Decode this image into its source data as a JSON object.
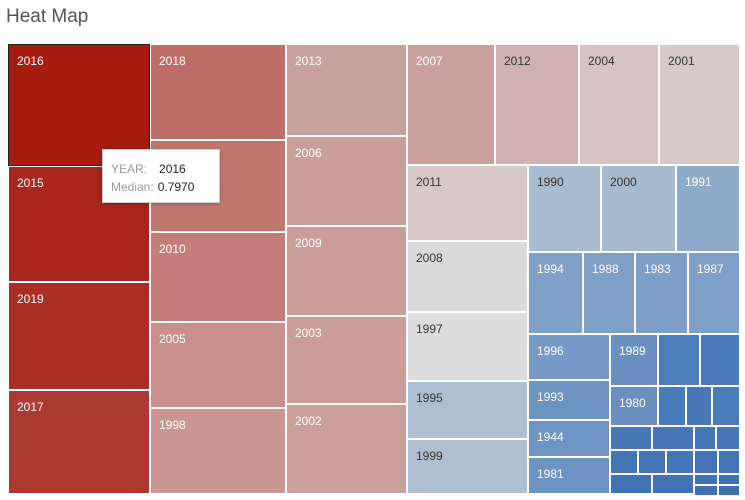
{
  "title": "Heat Map",
  "tooltip": {
    "year_label": "YEAR:",
    "year_value": "2016",
    "median_label": "Median:",
    "median_value": "0.7970"
  },
  "chart_data": {
    "type": "treemap",
    "title": "Heat Map",
    "selected": "2016",
    "color_scale": {
      "high": "#a61c11",
      "mid": "#dcdcdc",
      "low": "#3f73b3"
    },
    "cells": [
      {
        "label": "2016",
        "value": 16.8,
        "color": "#a61c11"
      },
      {
        "label": "2015",
        "value": 14.3,
        "color": "#a8261b"
      },
      {
        "label": "2019",
        "value": 13.6,
        "color": "#ab2e24"
      },
      {
        "label": "2017",
        "value": 13.7,
        "color": "#ac3a30"
      },
      {
        "label": "2018",
        "value": 12.9,
        "color": "#bf6e67"
      },
      {
        "label": "",
        "value": 12.7,
        "color": "#c07770"
      },
      {
        "label": "2010",
        "value": 12.3,
        "color": "#c47d78"
      },
      {
        "label": "2005",
        "value": 12.0,
        "color": "#c8908b"
      },
      {
        "label": "1998",
        "value": 11.9,
        "color": "#ca9692"
      },
      {
        "label": "2013",
        "value": 11.2,
        "color": "#c9a19f"
      },
      {
        "label": "2006",
        "value": 11.0,
        "color": "#c99e9b"
      },
      {
        "label": "2009",
        "value": 11.0,
        "color": "#c99e9b"
      },
      {
        "label": "2003",
        "value": 10.9,
        "color": "#ca9d9a"
      },
      {
        "label": "2002",
        "value": 10.5,
        "color": "#cb9f9c"
      },
      {
        "label": "2007",
        "value": 10.0,
        "color": "#c9a09e"
      },
      {
        "label": "2012",
        "value": 9.4,
        "color": "#d0b3b1"
      },
      {
        "label": "2004",
        "value": 9.2,
        "color": "#d7c3c2"
      },
      {
        "label": "2001",
        "value": 9.1,
        "color": "#d8c9c9"
      },
      {
        "label": "2011",
        "value": 9.0,
        "color": "#d8c8c7"
      },
      {
        "label": "2008",
        "value": 8.9,
        "color": "#dadada"
      },
      {
        "label": "1997",
        "value": 8.9,
        "color": "#dddddd"
      },
      {
        "label": "1995",
        "value": 8.3,
        "color": "#aebfd1"
      },
      {
        "label": "1999",
        "value": 7.8,
        "color": "#aebfd1"
      },
      {
        "label": "1990",
        "value": 8.0,
        "color": "#a9bdd2"
      },
      {
        "label": "2000",
        "value": 7.9,
        "color": "#a7bbd0"
      },
      {
        "label": "1991",
        "value": 6.7,
        "color": "#8fabcc"
      },
      {
        "label": "1994",
        "value": 6.6,
        "color": "#7fa0c8"
      },
      {
        "label": "1988",
        "value": 6.4,
        "color": "#7ea0c7"
      },
      {
        "label": "1983",
        "value": 6.2,
        "color": "#7d9ec6"
      },
      {
        "label": "1987",
        "value": 5.9,
        "color": "#7e9fc7"
      },
      {
        "label": "1996",
        "value": 5.6,
        "color": "#7699c5"
      },
      {
        "label": "1989",
        "value": 5.0,
        "color": "#6a90c1"
      },
      {
        "label": "1993",
        "value": 4.7,
        "color": "#6d93c2"
      },
      {
        "label": "1980",
        "value": 4.4,
        "color": "#6a90c1"
      },
      {
        "label": "1944",
        "value": 4.1,
        "color": "#6e94c3"
      },
      {
        "label": "1981",
        "value": 3.8,
        "color": "#6d93c2"
      },
      {
        "label": "",
        "value": 3.6,
        "color": "#4d7dbb"
      },
      {
        "label": "",
        "value": 3.4,
        "color": "#4a7aba"
      },
      {
        "label": "",
        "value": 3.0,
        "color": "#497ab9"
      },
      {
        "label": "",
        "value": 2.9,
        "color": "#4878b8"
      },
      {
        "label": "",
        "value": 2.8,
        "color": "#4a7bba"
      },
      {
        "label": "",
        "value": 2.6,
        "color": "#4878b8"
      },
      {
        "label": "",
        "value": 2.4,
        "color": "#4677b8"
      },
      {
        "label": "",
        "value": 2.3,
        "color": "#4576b7"
      },
      {
        "label": "",
        "value": 2.2,
        "color": "#4677b7"
      },
      {
        "label": "",
        "value": 2.0,
        "color": "#4475b7"
      },
      {
        "label": "",
        "value": 1.8,
        "color": "#4374b6"
      },
      {
        "label": "",
        "value": 1.6,
        "color": "#4475b6"
      },
      {
        "label": "",
        "value": 1.4,
        "color": "#4273b6"
      },
      {
        "label": "",
        "value": 1.2,
        "color": "#4373b6"
      },
      {
        "label": "",
        "value": 1.0,
        "color": "#4172b5"
      },
      {
        "label": "",
        "value": 0.9,
        "color": "#4172b5"
      },
      {
        "label": "",
        "value": 0.8,
        "color": "#4071b5"
      },
      {
        "label": "",
        "value": 0.7,
        "color": "#4071b5"
      },
      {
        "label": "",
        "value": 0.6,
        "color": "#3f70b4"
      },
      {
        "label": "",
        "value": 0.5,
        "color": "#3f70b4"
      }
    ]
  }
}
